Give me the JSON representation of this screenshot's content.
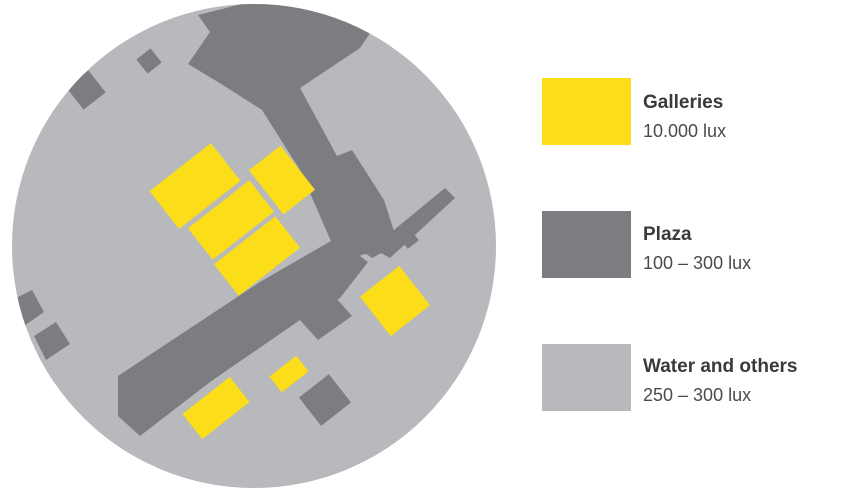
{
  "legend": {
    "galleries": {
      "label": "Galleries",
      "value": "10.000 lux",
      "color": "#FBDD19"
    },
    "plaza": {
      "label": "Plaza",
      "value": "100 – 300 lux",
      "color": "#7B7D80"
    },
    "water": {
      "label": "Water and others",
      "value": "250 – 300 lux",
      "color": "#B7B9BC"
    }
  }
}
